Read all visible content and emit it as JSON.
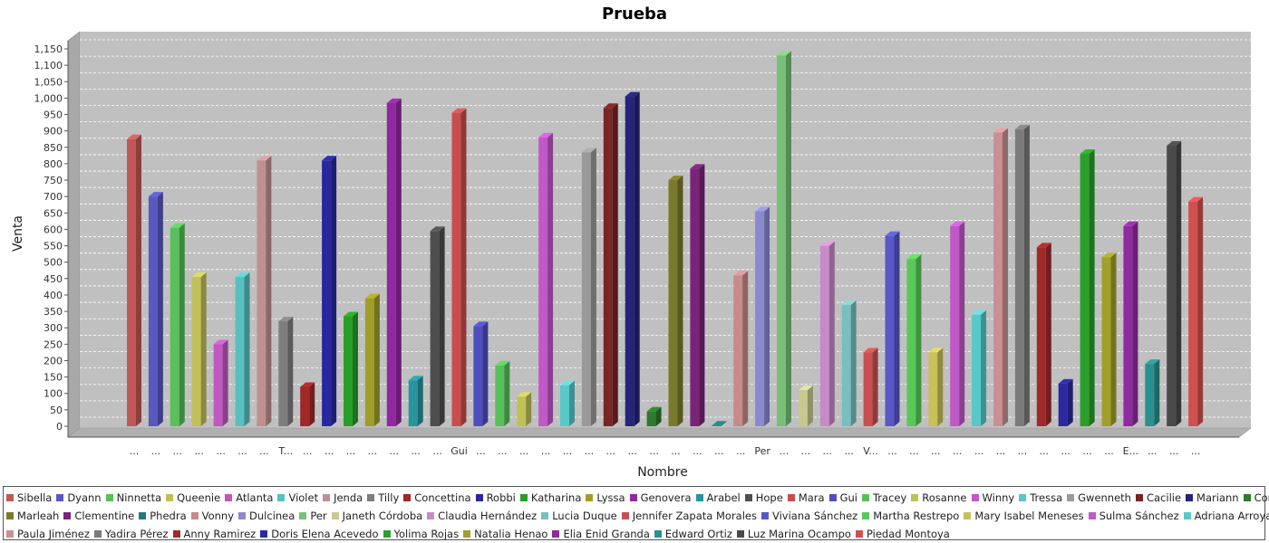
{
  "chart_data": {
    "type": "bar",
    "title": "Prueba",
    "xlabel": "Nombre",
    "ylabel": "Venta",
    "ylim": [
      0,
      1175
    ],
    "yticks": [
      0,
      50,
      100,
      150,
      200,
      250,
      300,
      350,
      400,
      450,
      500,
      550,
      600,
      650,
      700,
      750,
      800,
      850,
      900,
      950,
      1000,
      1050,
      1100,
      1150
    ],
    "ytick_labels": [
      "0",
      "50",
      "100",
      "150",
      "200",
      "250",
      "300",
      "350",
      "400",
      "450",
      "500",
      "550",
      "600",
      "650",
      "700",
      "750",
      "800",
      "850",
      "900",
      "950",
      "1,000",
      "1,050",
      "1,100",
      "1,150"
    ],
    "grid": true,
    "legend_position": "bottom",
    "xtick_labels": [
      "...",
      "...",
      "...",
      "...",
      "...",
      "...",
      "...",
      "T...",
      "...",
      "...",
      "...",
      "...",
      "...",
      "...",
      "...",
      "Gui",
      "...",
      "...",
      "...",
      "...",
      "...",
      "...",
      "...",
      "...",
      "...",
      "...",
      "...",
      "...",
      "...",
      "Per",
      "...",
      "...",
      "...",
      "...",
      "V...",
      "...",
      "...",
      "...",
      "...",
      "...",
      "...",
      "...",
      "...",
      "...",
      "...",
      "...",
      "E...",
      "...",
      "...",
      "..."
    ],
    "series": [
      {
        "name": "Sibella",
        "value": 875,
        "color": "#c05858"
      },
      {
        "name": "Dyann",
        "value": 700,
        "color": "#5858c0"
      },
      {
        "name": "Ninnetta",
        "value": 605,
        "color": "#58c058"
      },
      {
        "name": "Queenie",
        "value": 455,
        "color": "#c0c058"
      },
      {
        "name": "Atlanta",
        "value": 250,
        "color": "#c058c0"
      },
      {
        "name": "Violet",
        "value": 455,
        "color": "#58c0c0"
      },
      {
        "name": "Jenda",
        "value": 810,
        "color": "#c09090"
      },
      {
        "name": "Tilly",
        "value": 320,
        "color": "#7e7e7e"
      },
      {
        "name": "Concettina",
        "value": 120,
        "color": "#a02828"
      },
      {
        "name": "Robbi",
        "value": 810,
        "color": "#28289e"
      },
      {
        "name": "Katharina",
        "value": 335,
        "color": "#289e28"
      },
      {
        "name": "Lyssa",
        "value": 390,
        "color": "#9e9e28"
      },
      {
        "name": "Genovera",
        "value": 985,
        "color": "#9028a0"
      },
      {
        "name": "Arabel",
        "value": 140,
        "color": "#28949e"
      },
      {
        "name": "Hope",
        "value": 595,
        "color": "#4e4e4e"
      },
      {
        "name": "Mara",
        "value": 955,
        "color": "#c84e4e"
      },
      {
        "name": "Gui",
        "value": 305,
        "color": "#4e4ec0"
      },
      {
        "name": "Tracey",
        "value": 185,
        "color": "#58c058"
      },
      {
        "name": "Rosanne",
        "value": 90,
        "color": "#c0c058"
      },
      {
        "name": "Winny",
        "value": 880,
        "color": "#c058c8"
      },
      {
        "name": "Tressa",
        "value": 125,
        "color": "#58c8c8"
      },
      {
        "name": "Gwenneth",
        "value": 835,
        "color": "#9a9a9a"
      },
      {
        "name": "Cacilie",
        "value": 970,
        "color": "#7a2424"
      },
      {
        "name": "Mariann",
        "value": 1005,
        "color": "#24247a"
      },
      {
        "name": "Corly",
        "value": 45,
        "color": "#2e7a2e"
      },
      {
        "name": "Marleah",
        "value": 750,
        "color": "#7a7a2e"
      },
      {
        "name": "Clementine",
        "value": 785,
        "color": "#782478"
      },
      {
        "name": "Phedra",
        "value": 2,
        "color": "#247a7a"
      },
      {
        "name": "Vonny",
        "value": 460,
        "color": "#c88a8a"
      },
      {
        "name": "Dulcinea",
        "value": 655,
        "color": "#8a8ad0"
      },
      {
        "name": "Per",
        "value": 1130,
        "color": "#78c078"
      },
      {
        "name": "Janeth Córdoba",
        "value": 110,
        "color": "#c8c890"
      },
      {
        "name": "Claudia Hernández",
        "value": 550,
        "color": "#c88ac8"
      },
      {
        "name": "Lucia Duque",
        "value": 370,
        "color": "#78c0c0"
      },
      {
        "name": "Jennifer Zapata Morales",
        "value": 225,
        "color": "#c85050"
      },
      {
        "name": "Viviana Sánchez",
        "value": 580,
        "color": "#5858c8"
      },
      {
        "name": "Martha Restrepo",
        "value": 510,
        "color": "#58c858"
      },
      {
        "name": "Mary Isabel Meneses",
        "value": 225,
        "color": "#c8c058"
      },
      {
        "name": "Sulma Sánchez",
        "value": 610,
        "color": "#c058c8"
      },
      {
        "name": "Adriana Arroyave",
        "value": 340,
        "color": "#58c8c8"
      },
      {
        "name": "Paula Jiménez",
        "value": 895,
        "color": "#c89090"
      },
      {
        "name": "Yadira Pérez",
        "value": 905,
        "color": "#7a7a7a"
      },
      {
        "name": "Anny Ramirez",
        "value": 545,
        "color": "#a02a2a"
      },
      {
        "name": "Doris Elena Acevedo",
        "value": 130,
        "color": "#2a2aa0"
      },
      {
        "name": "Yolima Rojas",
        "value": 830,
        "color": "#2aa02a"
      },
      {
        "name": "Natalia Henao",
        "value": 515,
        "color": "#a0a02a"
      },
      {
        "name": "Elia Enid Granda",
        "value": 610,
        "color": "#902aa0"
      },
      {
        "name": "Edward Ortiz",
        "value": 190,
        "color": "#2a9090"
      },
      {
        "name": "Luz Marina Ocampo",
        "value": 855,
        "color": "#4a4a4a"
      },
      {
        "name": "Piedad Montoya",
        "value": 685,
        "color": "#d05050"
      }
    ],
    "legend_rows": [
      [
        0,
        1,
        2,
        3,
        4,
        5,
        6,
        7,
        8,
        9,
        10,
        11,
        12,
        13,
        14,
        15,
        16,
        17,
        18,
        19,
        20,
        21,
        22,
        23,
        24
      ],
      [
        25,
        26,
        27,
        28,
        29,
        30,
        31,
        32,
        33,
        34,
        35,
        36,
        37,
        38,
        39
      ],
      [
        40,
        41,
        42,
        43,
        44,
        45,
        46,
        47,
        48,
        49
      ]
    ]
  }
}
